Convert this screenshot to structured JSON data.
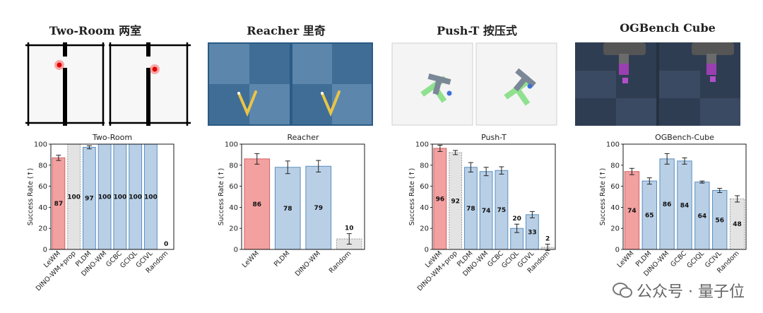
{
  "panels": [
    {
      "env_title": "Two-Room 两室"
    },
    {
      "env_title": "Reacher 里奇"
    },
    {
      "env_title": "Push-T 按压式"
    },
    {
      "env_title": "OGBench Cube"
    }
  ],
  "watermark": "公众号 · 量子位",
  "colors": {
    "lewm": "#f2a0a0",
    "lewm_edge": "#d06464",
    "baseline": "#b8cfe6",
    "baseline_edge": "#5b8fbf",
    "gray": "#e3e3e3",
    "gray_edge": "#9a9a9a"
  },
  "chart_data": [
    {
      "type": "bar",
      "title": "Two-Room",
      "ylabel": "Success Rate (↑)",
      "ylim": [
        0,
        100
      ],
      "yticks": [
        0,
        20,
        40,
        60,
        80,
        100
      ],
      "categories": [
        "LeWM",
        "DINO-WM+prop",
        "PLDM",
        "DINO-WM",
        "GCBC",
        "GCIQL",
        "GCIVL",
        "Random"
      ],
      "values": [
        87,
        100,
        97,
        100,
        100,
        100,
        100,
        0
      ],
      "value_labels": [
        "87",
        "100",
        "97",
        "100",
        "100",
        "100",
        "100",
        "0"
      ],
      "errors": [
        2.5,
        0,
        1.5,
        0,
        0,
        0,
        0,
        0
      ],
      "styles": [
        "lewm",
        "gray",
        "baseline",
        "baseline",
        "baseline",
        "baseline",
        "baseline",
        "gray"
      ]
    },
    {
      "type": "bar",
      "title": "Reacher",
      "ylabel": "Success Rate (↑)",
      "ylim": [
        0,
        100
      ],
      "yticks": [
        0,
        20,
        40,
        60,
        80,
        100
      ],
      "categories": [
        "LeWM",
        "PLDM",
        "DINO-WM",
        "Random"
      ],
      "values": [
        86,
        78,
        79,
        10
      ],
      "value_labels": [
        "86",
        "78",
        "79",
        "10"
      ],
      "errors": [
        5,
        6,
        5.5,
        5
      ],
      "styles": [
        "lewm",
        "baseline",
        "baseline",
        "gray"
      ]
    },
    {
      "type": "bar",
      "title": "Push-T",
      "ylabel": "Success Rate (↑)",
      "ylim": [
        0,
        100
      ],
      "yticks": [
        0,
        20,
        40,
        60,
        80,
        100
      ],
      "categories": [
        "LeWM",
        "DINO-WM+prop",
        "PLDM",
        "DINO-WM",
        "GCBC",
        "GCIQL",
        "GCIVL",
        "Random"
      ],
      "values": [
        96,
        92,
        78,
        74,
        75,
        20,
        33,
        2
      ],
      "value_labels": [
        "96",
        "92",
        "78",
        "74",
        "75",
        "20",
        "33",
        "2"
      ],
      "errors": [
        3,
        2,
        4.5,
        4,
        3.5,
        4,
        3,
        3
      ],
      "styles": [
        "lewm",
        "gray",
        "baseline",
        "baseline",
        "baseline",
        "baseline",
        "baseline",
        "gray"
      ]
    },
    {
      "type": "bar",
      "title": "OGBench-Cube",
      "ylabel": "Success Rate (↑)",
      "ylim": [
        0,
        100
      ],
      "yticks": [
        0,
        20,
        40,
        60,
        80,
        100
      ],
      "categories": [
        "LeWM",
        "PLDM",
        "DINO-WM",
        "GCBC",
        "GCIQL",
        "GCIVL",
        "Random"
      ],
      "values": [
        74,
        65,
        86,
        84,
        64,
        56,
        48
      ],
      "value_labels": [
        "74",
        "65",
        "86",
        "84",
        "64",
        "56",
        "48"
      ],
      "errors": [
        3,
        3,
        5,
        3,
        1,
        2,
        3
      ],
      "styles": [
        "lewm",
        "baseline",
        "baseline",
        "baseline",
        "baseline",
        "baseline",
        "gray"
      ]
    }
  ]
}
